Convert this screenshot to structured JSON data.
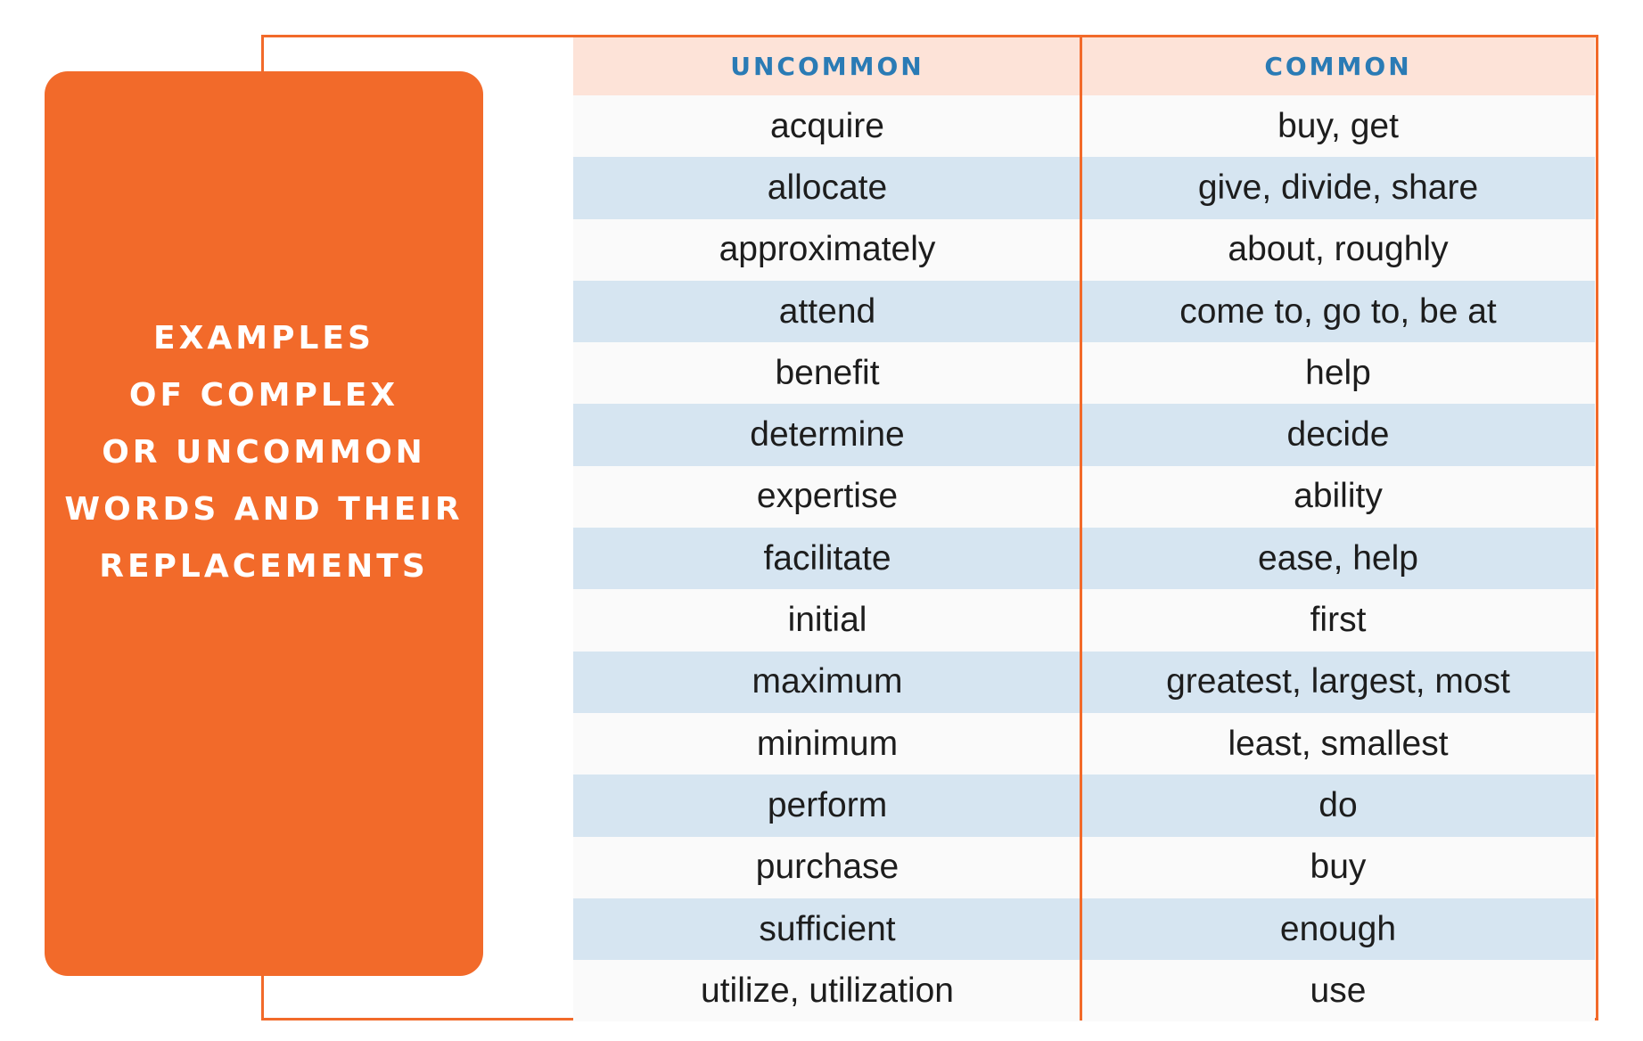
{
  "side_panel": {
    "title_lines": [
      "EXAMPLES",
      "OF COMPLEX",
      "OR UNCOMMON",
      "WORDS AND THEIR",
      "REPLACEMENTS"
    ]
  },
  "table": {
    "headers": {
      "uncommon": "UNCOMMON",
      "common": "COMMON"
    },
    "rows": [
      {
        "uncommon": "acquire",
        "common": "buy, get"
      },
      {
        "uncommon": "allocate",
        "common": "give, divide, share"
      },
      {
        "uncommon": "approximately",
        "common": "about, roughly"
      },
      {
        "uncommon": "attend",
        "common": "come to, go to, be at"
      },
      {
        "uncommon": "benefit",
        "common": "help"
      },
      {
        "uncommon": "determine",
        "common": "decide"
      },
      {
        "uncommon": "expertise",
        "common": "ability"
      },
      {
        "uncommon": "facilitate",
        "common": "ease, help"
      },
      {
        "uncommon": "initial",
        "common": "first"
      },
      {
        "uncommon": "maximum",
        "common": "greatest, largest, most"
      },
      {
        "uncommon": "minimum",
        "common": "least, smallest"
      },
      {
        "uncommon": "perform",
        "common": "do"
      },
      {
        "uncommon": "purchase",
        "common": "buy"
      },
      {
        "uncommon": "sufficient",
        "common": "enough"
      },
      {
        "uncommon": "utilize, utilization",
        "common": "use"
      }
    ]
  },
  "colors": {
    "accent_orange": "#f26a2a",
    "header_text_blue": "#2a7bb5",
    "header_bg": "#fde3d8",
    "row_alt_blue": "#d6e5f1",
    "row_light": "#fafafa"
  }
}
